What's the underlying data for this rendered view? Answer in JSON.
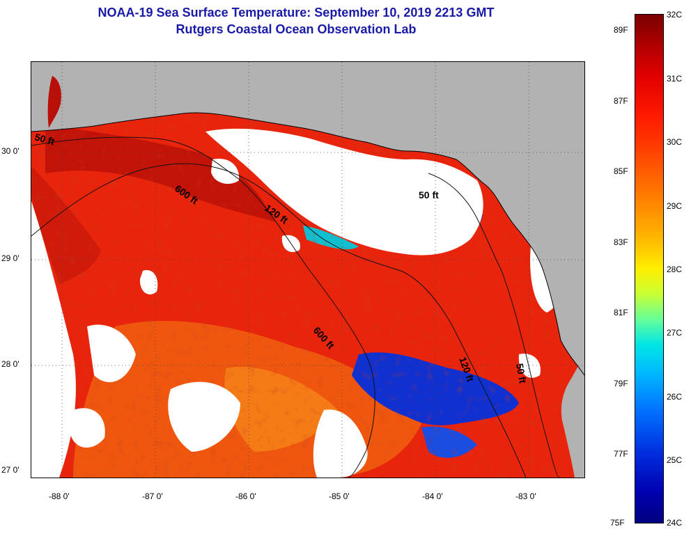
{
  "title": "NOAA-19 Sea Surface Temperature:  September 10, 2019 2213 GMT",
  "subtitle": "Rutgers Coastal Ocean Observation Lab",
  "lat_labels": [
    "30 0'",
    "29 0'",
    "28 0'",
    "27 0'"
  ],
  "lon_labels": [
    "-88 0'",
    "-87 0'",
    "-86 0'",
    "-85 0'",
    "-84 0'",
    "-83 0'"
  ],
  "isobath_labels": [
    "50 ft",
    "600 ft",
    "120 ft",
    "50 ft",
    "600 ft",
    "120 ft",
    "50 ft"
  ],
  "colorbar": {
    "celsius": [
      "32C",
      "31C",
      "30C",
      "29C",
      "28C",
      "27C",
      "26C",
      "25C",
      "24C"
    ],
    "fahrenheit": [
      "89F",
      "87F",
      "85F",
      "83F",
      "81F",
      "79F",
      "77F",
      "75F"
    ]
  },
  "colors": {
    "land": "#b2b2b2",
    "title": "#1a1aa8",
    "warm": "#e8250c",
    "hot": "#b80f08",
    "orange": "#f06010",
    "cold": "#1030d0",
    "cloud": "#ffffff"
  }
}
